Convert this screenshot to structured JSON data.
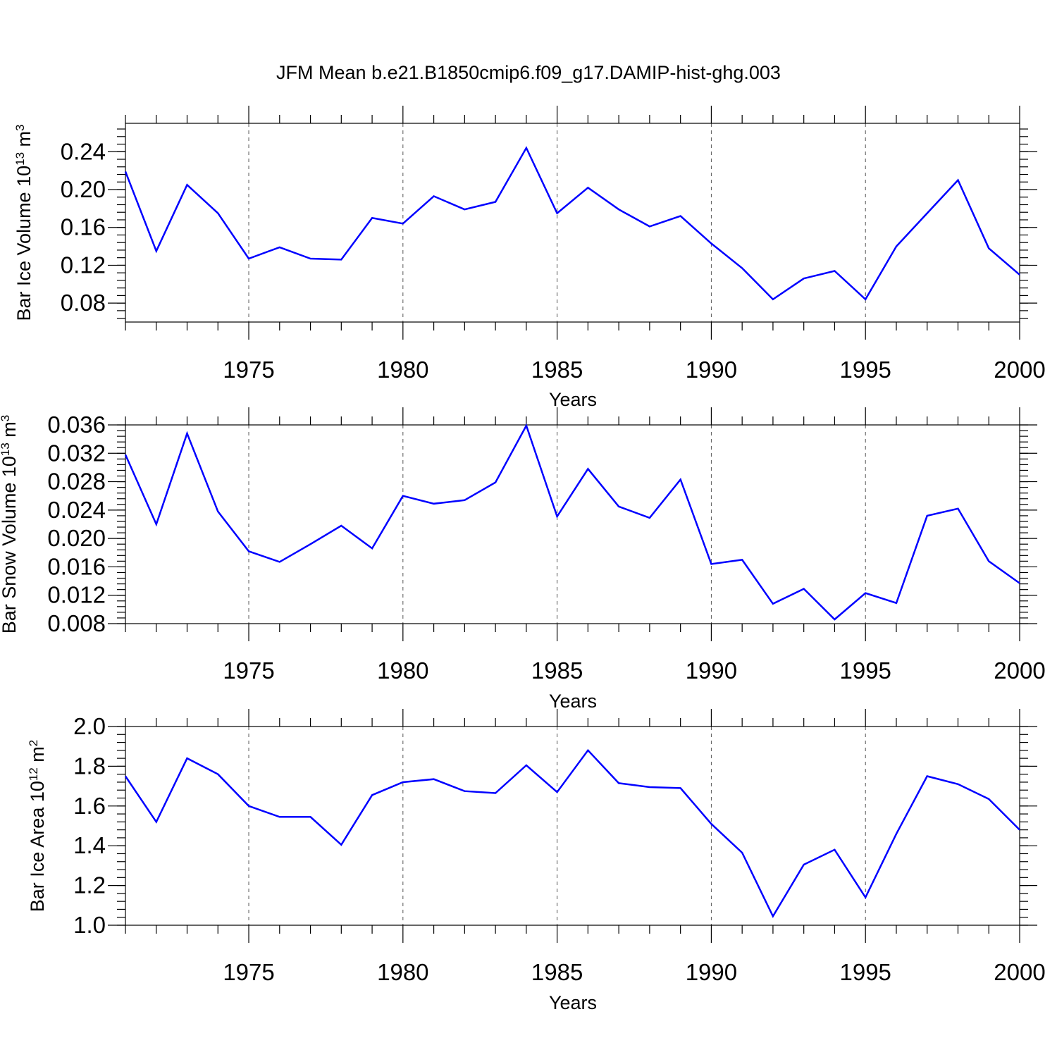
{
  "title": "JFM Mean b.e21.B1850cmip6.f09_g17.DAMIP-hist-ghg.003",
  "colors": {
    "series": "#0000ff",
    "axis": "#000000",
    "grid": "#555555"
  },
  "chart_data": [
    {
      "type": "line",
      "ylabel": "Bar Ice Volume 10",
      "ylabel_exp": "13",
      "ylabel_unit": " m",
      "ylabel_unit_exp": "3",
      "xlabel": "Years",
      "xlim": [
        1971,
        2000
      ],
      "ylim": [
        0.06,
        0.27
      ],
      "yticks": [
        0.08,
        0.12,
        0.16,
        0.2,
        0.24
      ],
      "ytick_labels": [
        "0.08",
        "0.12",
        "0.16",
        "0.20",
        "0.24"
      ],
      "xticks": [
        1975,
        1980,
        1985,
        1990,
        1995,
        2000
      ],
      "xtick_labels": [
        "1975",
        "1980",
        "1985",
        "1990",
        "1995",
        "2000"
      ],
      "vgrid": [
        1975,
        1980,
        1985,
        1990,
        1995
      ],
      "x": [
        1971,
        1972,
        1973,
        1974,
        1975,
        1976,
        1977,
        1978,
        1979,
        1980,
        1981,
        1982,
        1983,
        1984,
        1985,
        1986,
        1987,
        1988,
        1989,
        1990,
        1991,
        1992,
        1993,
        1994,
        1995,
        1996,
        1997,
        1998,
        1999,
        2000
      ],
      "y": [
        0.219,
        0.135,
        0.205,
        0.175,
        0.127,
        0.139,
        0.127,
        0.126,
        0.17,
        0.164,
        0.193,
        0.179,
        0.187,
        0.244,
        0.175,
        0.202,
        0.179,
        0.161,
        0.172,
        0.143,
        0.117,
        0.084,
        0.106,
        0.114,
        0.084,
        0.14,
        0.175,
        0.21,
        0.138,
        0.11
      ]
    },
    {
      "type": "line",
      "ylabel": "Bar Snow Volume 10",
      "ylabel_exp": "13",
      "ylabel_unit": " m",
      "ylabel_unit_exp": "3",
      "xlabel": "Years",
      "xlim": [
        1971,
        2000
      ],
      "ylim": [
        0.008,
        0.036
      ],
      "yticks": [
        0.008,
        0.012,
        0.016,
        0.02,
        0.024,
        0.028,
        0.032,
        0.036
      ],
      "ytick_labels": [
        "0.008",
        "0.012",
        "0.016",
        "0.020",
        "0.024",
        "0.028",
        "0.032",
        "0.036"
      ],
      "xticks": [
        1975,
        1980,
        1985,
        1990,
        1995,
        2000
      ],
      "xtick_labels": [
        "1975",
        "1980",
        "1985",
        "1990",
        "1995",
        "2000"
      ],
      "vgrid": [
        1975,
        1980,
        1985,
        1990,
        1995
      ],
      "x": [
        1971,
        1972,
        1973,
        1974,
        1975,
        1976,
        1977,
        1978,
        1979,
        1980,
        1981,
        1982,
        1983,
        1984,
        1985,
        1986,
        1987,
        1988,
        1989,
        1990,
        1991,
        1992,
        1993,
        1994,
        1995,
        1996,
        1997,
        1998,
        1999,
        2000
      ],
      "y": [
        0.0318,
        0.022,
        0.0348,
        0.0238,
        0.0182,
        0.0167,
        0.0192,
        0.0218,
        0.0186,
        0.026,
        0.0249,
        0.0254,
        0.0279,
        0.0359,
        0.0231,
        0.0298,
        0.0245,
        0.0229,
        0.0283,
        0.0164,
        0.017,
        0.0108,
        0.0129,
        0.0086,
        0.0123,
        0.0109,
        0.0232,
        0.0242,
        0.0168,
        0.0137
      ]
    },
    {
      "type": "line",
      "ylabel": "Bar Ice Area 10",
      "ylabel_exp": "12",
      "ylabel_unit": " m",
      "ylabel_unit_exp": "2",
      "xlabel": "Years",
      "xlim": [
        1971,
        2000
      ],
      "ylim": [
        1.0,
        2.0
      ],
      "yticks": [
        1.0,
        1.2,
        1.4,
        1.6,
        1.8,
        2.0
      ],
      "ytick_labels": [
        "1.0",
        "1.2",
        "1.4",
        "1.6",
        "1.8",
        "2.0"
      ],
      "xticks": [
        1975,
        1980,
        1985,
        1990,
        1995,
        2000
      ],
      "xtick_labels": [
        "1975",
        "1980",
        "1985",
        "1990",
        "1995",
        "2000"
      ],
      "vgrid": [
        1975,
        1980,
        1985,
        1990,
        1995
      ],
      "x": [
        1971,
        1972,
        1973,
        1974,
        1975,
        1976,
        1977,
        1978,
        1979,
        1980,
        1981,
        1982,
        1983,
        1984,
        1985,
        1986,
        1987,
        1988,
        1989,
        1990,
        1991,
        1992,
        1993,
        1994,
        1995,
        1996,
        1997,
        1998,
        1999,
        2000
      ],
      "y": [
        1.75,
        1.52,
        1.84,
        1.76,
        1.6,
        1.545,
        1.545,
        1.405,
        1.655,
        1.72,
        1.735,
        1.675,
        1.665,
        1.805,
        1.67,
        1.88,
        1.715,
        1.695,
        1.69,
        1.51,
        1.365,
        1.045,
        1.305,
        1.38,
        1.14,
        1.46,
        1.75,
        1.71,
        1.635,
        1.48
      ]
    }
  ]
}
